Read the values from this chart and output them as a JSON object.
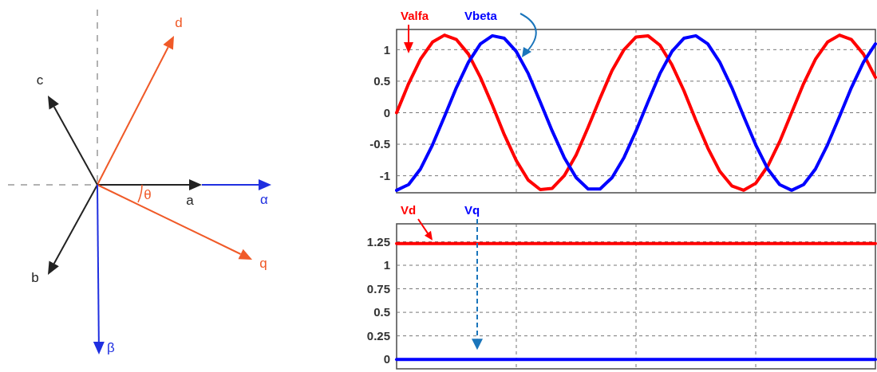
{
  "chart_data": [
    {
      "type": "other",
      "annotations": [
        "d",
        "c",
        "a",
        "α",
        "θ",
        "q",
        "b",
        "β"
      ]
    },
    {
      "type": "line",
      "categories": [
        null,
        null,
        null,
        null,
        null,
        null,
        null,
        null,
        null,
        null,
        null,
        null,
        null,
        null,
        null,
        null,
        null,
        null,
        null,
        null,
        null,
        null,
        null,
        null,
        null,
        null,
        null,
        null,
        null,
        null,
        null,
        null,
        null,
        null,
        null,
        null,
        null,
        null,
        null,
        null,
        null
      ],
      "series": [
        {
          "name": "Valfa",
          "color": "#ff0000",
          "values": [
            0,
            0.46,
            0.85,
            1.12,
            1.23,
            1.16,
            0.93,
            0.56,
            0.12,
            -0.35,
            -0.76,
            -1.07,
            -1.22,
            -1.2,
            -1.0,
            -0.67,
            -0.23,
            0.23,
            0.67,
            1.0,
            1.2,
            1.22,
            1.07,
            0.76,
            0.35,
            -0.12,
            -0.56,
            -0.93,
            -1.16,
            -1.23,
            -1.12,
            -0.85,
            -0.46,
            0,
            0.46,
            0.85,
            1.12,
            1.23,
            1.16,
            0.93,
            0.56
          ]
        },
        {
          "name": "Vbeta",
          "color": "#0000ff",
          "values": [
            -1.23,
            -1.14,
            -0.89,
            -0.51,
            -0.06,
            0.4,
            0.8,
            1.09,
            1.22,
            1.18,
            0.97,
            0.62,
            0.17,
            -0.29,
            -0.71,
            -1.03,
            -1.21,
            -1.21,
            -1.03,
            -0.71,
            -0.29,
            0.17,
            0.62,
            0.97,
            1.18,
            1.22,
            1.09,
            0.8,
            0.4,
            -0.06,
            -0.51,
            -0.89,
            -1.14,
            -1.23,
            -1.14,
            -0.89,
            -0.51,
            -0.06,
            0.4,
            0.8,
            1.09
          ]
        }
      ],
      "ylim": [
        -1.27,
        1.32
      ],
      "yticks": [
        -1,
        -0.5,
        0,
        0.5,
        1
      ],
      "grid": true
    },
    {
      "type": "line",
      "categories": [
        null,
        null,
        null,
        null,
        null,
        null,
        null,
        null,
        null,
        null,
        null,
        null,
        null,
        null,
        null,
        null,
        null,
        null,
        null,
        null,
        null,
        null,
        null,
        null,
        null,
        null,
        null,
        null,
        null,
        null,
        null,
        null,
        null,
        null,
        null,
        null,
        null,
        null,
        null,
        null,
        null
      ],
      "series": [
        {
          "name": "Vd",
          "color": "#ff0000",
          "values": [
            1.23,
            1.23,
            1.23,
            1.23,
            1.23,
            1.23,
            1.23,
            1.23,
            1.23,
            1.23,
            1.23,
            1.23,
            1.23,
            1.23,
            1.23,
            1.23,
            1.23,
            1.23,
            1.23,
            1.23,
            1.23,
            1.23,
            1.23,
            1.23,
            1.23,
            1.23,
            1.23,
            1.23,
            1.23,
            1.23,
            1.23,
            1.23,
            1.23,
            1.23,
            1.23,
            1.23,
            1.23,
            1.23,
            1.23,
            1.23,
            1.23
          ]
        },
        {
          "name": "Vq",
          "color": "#0000ff",
          "values": [
            0,
            0,
            0,
            0,
            0,
            0,
            0,
            0,
            0,
            0,
            0,
            0,
            0,
            0,
            0,
            0,
            0,
            0,
            0,
            0,
            0,
            0,
            0,
            0,
            0,
            0,
            0,
            0,
            0,
            0,
            0,
            0,
            0,
            0,
            0,
            0,
            0,
            0,
            0,
            0,
            0
          ]
        }
      ],
      "ylim": [
        -0.1,
        1.44
      ],
      "yticks": [
        0,
        0.25,
        0.5,
        0.75,
        1,
        1.25
      ],
      "grid": true
    }
  ]
}
